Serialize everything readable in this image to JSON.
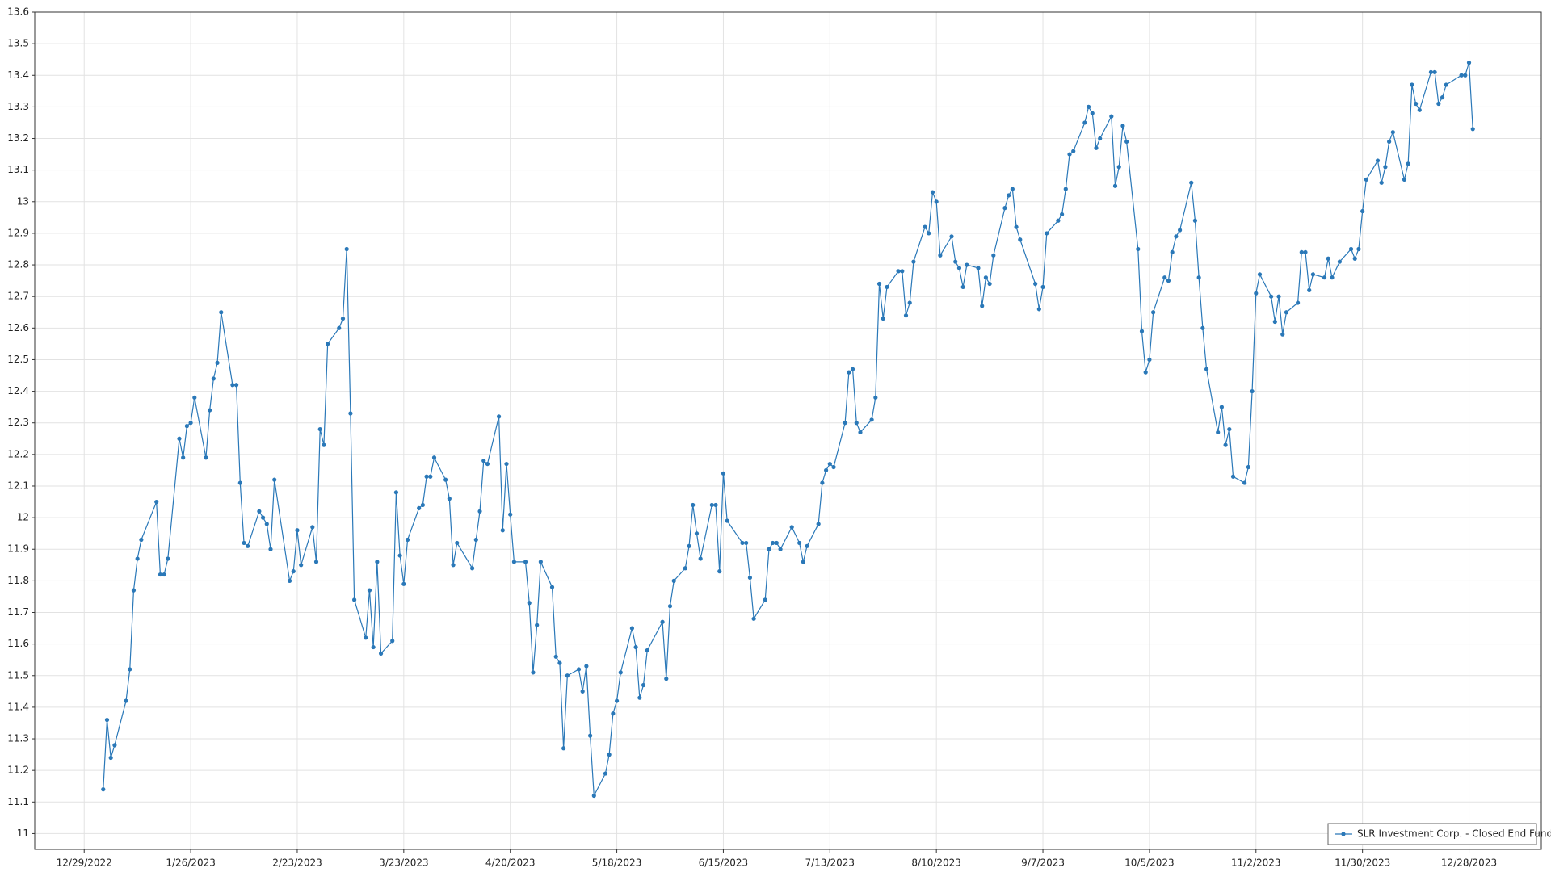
{
  "chart_data": {
    "type": "line",
    "x": [
      "1/3/2023",
      "1/4/2023",
      "1/5/2023",
      "1/6/2023",
      "1/9/2023",
      "1/10/2023",
      "1/11/2023",
      "1/12/2023",
      "1/13/2023",
      "1/17/2023",
      "1/18/2023",
      "1/19/2023",
      "1/20/2023",
      "1/23/2023",
      "1/24/2023",
      "1/25/2023",
      "1/26/2023",
      "1/27/2023",
      "1/30/2023",
      "1/31/2023",
      "2/1/2023",
      "2/2/2023",
      "2/3/2023",
      "2/6/2023",
      "2/7/2023",
      "2/8/2023",
      "2/9/2023",
      "2/10/2023",
      "2/13/2023",
      "2/14/2023",
      "2/15/2023",
      "2/16/2023",
      "2/17/2023",
      "2/21/2023",
      "2/22/2023",
      "2/23/2023",
      "2/24/2023",
      "2/27/2023",
      "2/28/2023",
      "3/1/2023",
      "3/2/2023",
      "3/3/2023",
      "3/6/2023",
      "3/7/2023",
      "3/8/2023",
      "3/9/2023",
      "3/10/2023",
      "3/13/2023",
      "3/14/2023",
      "3/15/2023",
      "3/16/2023",
      "3/17/2023",
      "3/20/2023",
      "3/21/2023",
      "3/22/2023",
      "3/23/2023",
      "3/24/2023",
      "3/27/2023",
      "3/28/2023",
      "3/29/2023",
      "3/30/2023",
      "3/31/2023",
      "4/3/2023",
      "4/4/2023",
      "4/5/2023",
      "4/6/2023",
      "4/10/2023",
      "4/11/2023",
      "4/12/2023",
      "4/13/2023",
      "4/14/2023",
      "4/17/2023",
      "4/18/2023",
      "4/19/2023",
      "4/20/2023",
      "4/21/2023",
      "4/24/2023",
      "4/25/2023",
      "4/26/2023",
      "4/27/2023",
      "4/28/2023",
      "5/1/2023",
      "5/2/2023",
      "5/3/2023",
      "5/4/2023",
      "5/5/2023",
      "5/8/2023",
      "5/9/2023",
      "5/10/2023",
      "5/11/2023",
      "5/12/2023",
      "5/15/2023",
      "5/16/2023",
      "5/17/2023",
      "5/18/2023",
      "5/19/2023",
      "5/22/2023",
      "5/23/2023",
      "5/24/2023",
      "5/25/2023",
      "5/26/2023",
      "5/30/2023",
      "5/31/2023",
      "6/1/2023",
      "6/2/2023",
      "6/5/2023",
      "6/6/2023",
      "6/7/2023",
      "6/8/2023",
      "6/9/2023",
      "6/12/2023",
      "6/13/2023",
      "6/14/2023",
      "6/15/2023",
      "6/16/2023",
      "6/20/2023",
      "6/21/2023",
      "6/22/2023",
      "6/23/2023",
      "6/26/2023",
      "6/27/2023",
      "6/28/2023",
      "6/29/2023",
      "6/30/2023",
      "7/3/2023",
      "7/5/2023",
      "7/6/2023",
      "7/7/2023",
      "7/10/2023",
      "7/11/2023",
      "7/12/2023",
      "7/13/2023",
      "7/14/2023",
      "7/17/2023",
      "7/18/2023",
      "7/19/2023",
      "7/20/2023",
      "7/21/2023",
      "7/24/2023",
      "7/25/2023",
      "7/26/2023",
      "7/27/2023",
      "7/28/2023",
      "7/31/2023",
      "8/1/2023",
      "8/2/2023",
      "8/3/2023",
      "8/4/2023",
      "8/7/2023",
      "8/8/2023",
      "8/9/2023",
      "8/10/2023",
      "8/11/2023",
      "8/14/2023",
      "8/15/2023",
      "8/16/2023",
      "8/17/2023",
      "8/18/2023",
      "8/21/2023",
      "8/22/2023",
      "8/23/2023",
      "8/24/2023",
      "8/25/2023",
      "8/28/2023",
      "8/29/2023",
      "8/30/2023",
      "8/31/2023",
      "9/1/2023",
      "9/5/2023",
      "9/6/2023",
      "9/7/2023",
      "9/8/2023",
      "9/11/2023",
      "9/12/2023",
      "9/13/2023",
      "9/14/2023",
      "9/15/2023",
      "9/18/2023",
      "9/19/2023",
      "9/20/2023",
      "9/21/2023",
      "9/22/2023",
      "9/25/2023",
      "9/26/2023",
      "9/27/2023",
      "9/28/2023",
      "9/29/2023",
      "10/2/2023",
      "10/3/2023",
      "10/4/2023",
      "10/5/2023",
      "10/6/2023",
      "10/9/2023",
      "10/10/2023",
      "10/11/2023",
      "10/12/2023",
      "10/13/2023",
      "10/16/2023",
      "10/17/2023",
      "10/18/2023",
      "10/19/2023",
      "10/20/2023",
      "10/23/2023",
      "10/24/2023",
      "10/25/2023",
      "10/26/2023",
      "10/27/2023",
      "10/30/2023",
      "10/31/2023",
      "11/1/2023",
      "11/2/2023",
      "11/3/2023",
      "11/6/2023",
      "11/7/2023",
      "11/8/2023",
      "11/9/2023",
      "11/10/2023",
      "11/13/2023",
      "11/14/2023",
      "11/15/2023",
      "11/16/2023",
      "11/17/2023",
      "11/20/2023",
      "11/21/2023",
      "11/22/2023",
      "11/24/2023",
      "11/27/2023",
      "11/28/2023",
      "11/29/2023",
      "11/30/2023",
      "12/1/2023",
      "12/4/2023",
      "12/5/2023",
      "12/6/2023",
      "12/7/2023",
      "12/8/2023",
      "12/11/2023",
      "12/12/2023",
      "12/13/2023",
      "12/14/2023",
      "12/15/2023",
      "12/18/2023",
      "12/19/2023",
      "12/20/2023",
      "12/21/2023",
      "12/22/2023",
      "12/26/2023",
      "12/27/2023",
      "12/28/2023",
      "12/29/2023"
    ],
    "series": [
      {
        "name": "SLR Investment Corp. - Closed End Fund",
        "color": "#2a78b8",
        "values": [
          11.14,
          11.36,
          11.24,
          11.28,
          11.42,
          11.52,
          11.77,
          11.87,
          11.93,
          12.05,
          11.82,
          11.82,
          11.87,
          12.25,
          12.19,
          12.29,
          12.3,
          12.38,
          12.19,
          12.34,
          12.44,
          12.49,
          12.65,
          12.42,
          12.42,
          12.11,
          11.92,
          11.91,
          12.02,
          12.0,
          11.98,
          11.9,
          12.12,
          11.8,
          11.83,
          11.96,
          11.85,
          11.97,
          11.86,
          12.28,
          12.23,
          12.55,
          12.6,
          12.63,
          12.85,
          12.33,
          11.74,
          11.62,
          11.77,
          11.59,
          11.86,
          11.57,
          11.61,
          12.08,
          11.88,
          11.79,
          11.93,
          12.03,
          12.04,
          12.13,
          12.13,
          12.19,
          12.12,
          12.06,
          11.85,
          11.92,
          11.84,
          11.93,
          12.02,
          12.18,
          12.17,
          12.32,
          11.96,
          12.17,
          12.01,
          11.86,
          11.86,
          11.73,
          11.51,
          11.66,
          11.86,
          11.78,
          11.56,
          11.54,
          11.27,
          11.5,
          11.52,
          11.45,
          11.53,
          11.31,
          11.12,
          11.19,
          11.25,
          11.38,
          11.42,
          11.51,
          11.65,
          11.59,
          11.43,
          11.47,
          11.58,
          11.67,
          11.49,
          11.72,
          11.8,
          11.84,
          11.91,
          12.04,
          11.95,
          11.87,
          12.04,
          12.04,
          11.83,
          12.14,
          11.99,
          11.92,
          11.92,
          11.81,
          11.68,
          11.74,
          11.9,
          11.92,
          11.92,
          11.9,
          11.97,
          11.92,
          11.86,
          11.91,
          11.98,
          12.11,
          12.15,
          12.17,
          12.16,
          12.3,
          12.46,
          12.47,
          12.3,
          12.27,
          12.31,
          12.38,
          12.74,
          12.63,
          12.73,
          12.78,
          12.78,
          12.64,
          12.68,
          12.81,
          12.92,
          12.9,
          13.03,
          13.0,
          12.83,
          12.89,
          12.81,
          12.79,
          12.73,
          12.8,
          12.79,
          12.67,
          12.76,
          12.74,
          12.83,
          12.98,
          13.02,
          13.04,
          12.92,
          12.88,
          12.74,
          12.66,
          12.73,
          12.9,
          12.94,
          12.96,
          13.04,
          13.15,
          13.16,
          13.25,
          13.3,
          13.28,
          13.17,
          13.2,
          13.27,
          13.05,
          13.11,
          13.24,
          13.19,
          12.85,
          12.59,
          12.46,
          12.5,
          12.65,
          12.76,
          12.75,
          12.84,
          12.89,
          12.91,
          13.06,
          12.94,
          12.76,
          12.6,
          12.47,
          12.27,
          12.35,
          12.23,
          12.28,
          12.13,
          12.11,
          12.16,
          12.4,
          12.71,
          12.77,
          12.7,
          12.62,
          12.7,
          12.58,
          12.65,
          12.68,
          12.84,
          12.84,
          12.72,
          12.77,
          12.76,
          12.82,
          12.76,
          12.81,
          12.85,
          12.82,
          12.85,
          12.97,
          13.07,
          13.13,
          13.06,
          13.11,
          13.19,
          13.22,
          13.07,
          13.12,
          13.37,
          13.31,
          13.29,
          13.41,
          13.41,
          13.31,
          13.33,
          13.37,
          13.4,
          13.4,
          13.44,
          13.23
        ]
      }
    ],
    "xlim": [
      "12/16/2022",
      "1/16/2024"
    ],
    "xticks": [
      "12/29/2022",
      "1/26/2023",
      "2/23/2023",
      "3/23/2023",
      "4/20/2023",
      "5/18/2023",
      "6/15/2023",
      "7/13/2023",
      "8/10/2023",
      "9/7/2023",
      "10/5/2023",
      "11/2/2023",
      "11/30/2023",
      "12/28/2023"
    ],
    "ylim": [
      10.95,
      13.6
    ],
    "yticks": [
      11,
      11.1,
      11.2,
      11.3,
      11.4,
      11.5,
      11.6,
      11.7,
      11.8,
      11.9,
      12,
      12.1,
      12.2,
      12.3,
      12.4,
      12.5,
      12.6,
      12.7,
      12.8,
      12.9,
      13,
      13.1,
      13.2,
      13.3,
      13.4,
      13.5,
      13.6
    ],
    "grid": true,
    "legend": "lower right"
  }
}
